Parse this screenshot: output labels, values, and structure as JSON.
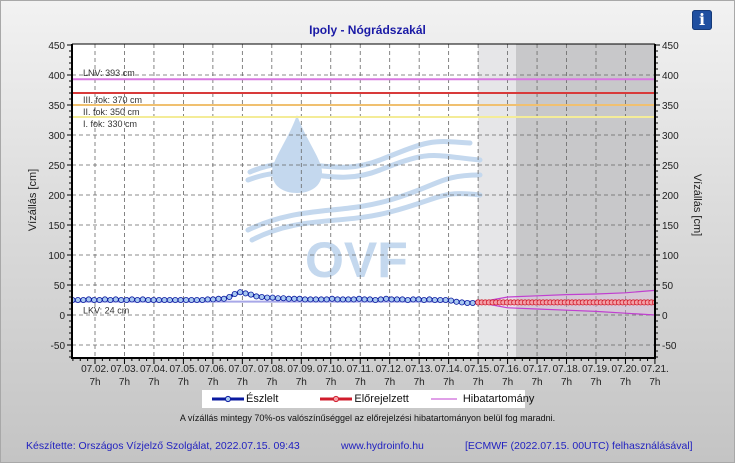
{
  "header": {
    "title": "Ipoly - Nógrádszakál",
    "info_icon": "i"
  },
  "axes": {
    "y_left_label": "Vízállás [cm]",
    "y_right_label": "Vízállás [cm]",
    "y_ticks": [
      "450",
      "400",
      "350",
      "300",
      "250",
      "200",
      "150",
      "100",
      "50",
      "0",
      "-50"
    ],
    "x_ticks": [
      {
        "date": "07.02.",
        "hour": "7h"
      },
      {
        "date": "07.03.",
        "hour": "7h"
      },
      {
        "date": "07.04.",
        "hour": "7h"
      },
      {
        "date": "07.05.",
        "hour": "7h"
      },
      {
        "date": "07.06.",
        "hour": "7h"
      },
      {
        "date": "07.07.",
        "hour": "7h"
      },
      {
        "date": "07.08.",
        "hour": "7h"
      },
      {
        "date": "07.09.",
        "hour": "7h"
      },
      {
        "date": "07.10.",
        "hour": "7h"
      },
      {
        "date": "07.11.",
        "hour": "7h"
      },
      {
        "date": "07.12.",
        "hour": "7h"
      },
      {
        "date": "07.13.",
        "hour": "7h"
      },
      {
        "date": "07.14.",
        "hour": "7h"
      },
      {
        "date": "07.15.",
        "hour": "7h"
      },
      {
        "date": "07.16.",
        "hour": "7h"
      },
      {
        "date": "07.17.",
        "hour": "7h"
      },
      {
        "date": "07.18.",
        "hour": "7h"
      },
      {
        "date": "07.19.",
        "hour": "7h"
      },
      {
        "date": "07.20.",
        "hour": "7h"
      },
      {
        "date": "07.21.",
        "hour": "7h"
      }
    ]
  },
  "thresholds": [
    {
      "label": "LNV: 393 cm",
      "value": 393,
      "color": "#d878e0"
    },
    {
      "label": "III. fok: 370 cm",
      "value": 370,
      "color": "#d83a3a"
    },
    {
      "label": "II. fok: 350 cm",
      "value": 350,
      "color": "#f0c070"
    },
    {
      "label": "I. fok: 330 cm",
      "value": 330,
      "color": "#f4ec98"
    },
    {
      "label": "LKV: 24 cm",
      "value": 24,
      "color": "#a8a8e8"
    }
  ],
  "watermark": "OVF",
  "legend": {
    "observed": "Észlelt",
    "forecast": "Előrejelzett",
    "error_band": "Hibatartomány"
  },
  "note": "A vízállás mintegy 70%-os valószínűséggel az előrejelzési hibatartományon belül fog maradni.",
  "footer": {
    "author": "Készítette: Országos Vízjelző Szolgálat, 2022.07.15. 09:43",
    "website": "www.hydroinfo.hu",
    "model": "[ECMWF (2022.07.15. 00UTC) felhasználásával]"
  },
  "colors": {
    "observed": "#0a1aa0",
    "observed_marker": "#a8c8f0",
    "forecast": "#d01c2c",
    "forecast_marker": "#f4a0a8",
    "error_band": "#c040d0",
    "title": "#1a1aa6",
    "footer": "#1f1fc0"
  },
  "chart_data": {
    "type": "line",
    "title": "Ipoly - Nógrádszakál",
    "xlabel": "",
    "ylabel": "Vízállás [cm]",
    "ylim": [
      -70,
      450
    ],
    "grid": true,
    "legend_position": "bottom",
    "x_range": [
      "07.01. 12h",
      "07.21. 7h"
    ],
    "forecast_start": "07.15. 7h",
    "series": [
      {
        "name": "Észlelt",
        "x_day_offset_step": 0.333,
        "x_start": "07.01. 12h",
        "values": [
          25,
          25,
          25,
          26,
          25,
          25,
          26,
          25,
          26,
          25,
          25,
          26,
          25,
          26,
          25,
          25,
          25,
          25,
          25,
          25,
          25,
          25,
          25,
          25,
          25,
          26,
          26,
          27,
          27,
          30,
          35,
          38,
          36,
          34,
          31,
          30,
          29,
          29,
          28,
          28,
          27,
          27,
          27,
          26,
          26,
          26,
          26,
          26,
          27,
          26,
          26,
          26,
          26,
          27,
          26,
          26,
          25,
          26,
          27,
          26,
          26,
          26,
          25,
          26,
          26,
          25,
          26,
          25,
          25,
          25,
          24,
          22,
          21,
          20,
          20,
          21
        ]
      },
      {
        "name": "Előrejelzett",
        "x_start": "07.15. 7h",
        "x_end": "07.21. 7h",
        "values": [
          21,
          21,
          21,
          21,
          21,
          21,
          21,
          21,
          21,
          21,
          21,
          21,
          21,
          21,
          21,
          21,
          21,
          21,
          21,
          21,
          21,
          21,
          21,
          21,
          21,
          21,
          21,
          21,
          21,
          21,
          21,
          21,
          21,
          21,
          21,
          21,
          21,
          21,
          21,
          21,
          21,
          21,
          21,
          21,
          21,
          21,
          21,
          21,
          21,
          21
        ]
      },
      {
        "name": "Hibatartomány (upper)",
        "x": [
          "07.15. 7h",
          "07.16. 7h",
          "07.17. 7h",
          "07.18. 7h",
          "07.19. 7h",
          "07.20. 7h",
          "07.21. 7h"
        ],
        "values": [
          21,
          30,
          32,
          34,
          35,
          37,
          41
        ]
      },
      {
        "name": "Hibatartomány (lower)",
        "x": [
          "07.15. 7h",
          "07.16. 7h",
          "07.17. 7h",
          "07.18. 7h",
          "07.19. 7h",
          "07.20. 7h",
          "07.21. 7h"
        ],
        "values": [
          21,
          12,
          10,
          8,
          6,
          3,
          0
        ]
      }
    ],
    "threshold_lines": [
      {
        "label": "LNV: 393 cm",
        "value": 393
      },
      {
        "label": "III. fok: 370 cm",
        "value": 370
      },
      {
        "label": "II. fok: 350 cm",
        "value": 350
      },
      {
        "label": "I. fok: 330 cm",
        "value": 330
      },
      {
        "label": "LKV: 24 cm",
        "value": 24
      }
    ]
  }
}
